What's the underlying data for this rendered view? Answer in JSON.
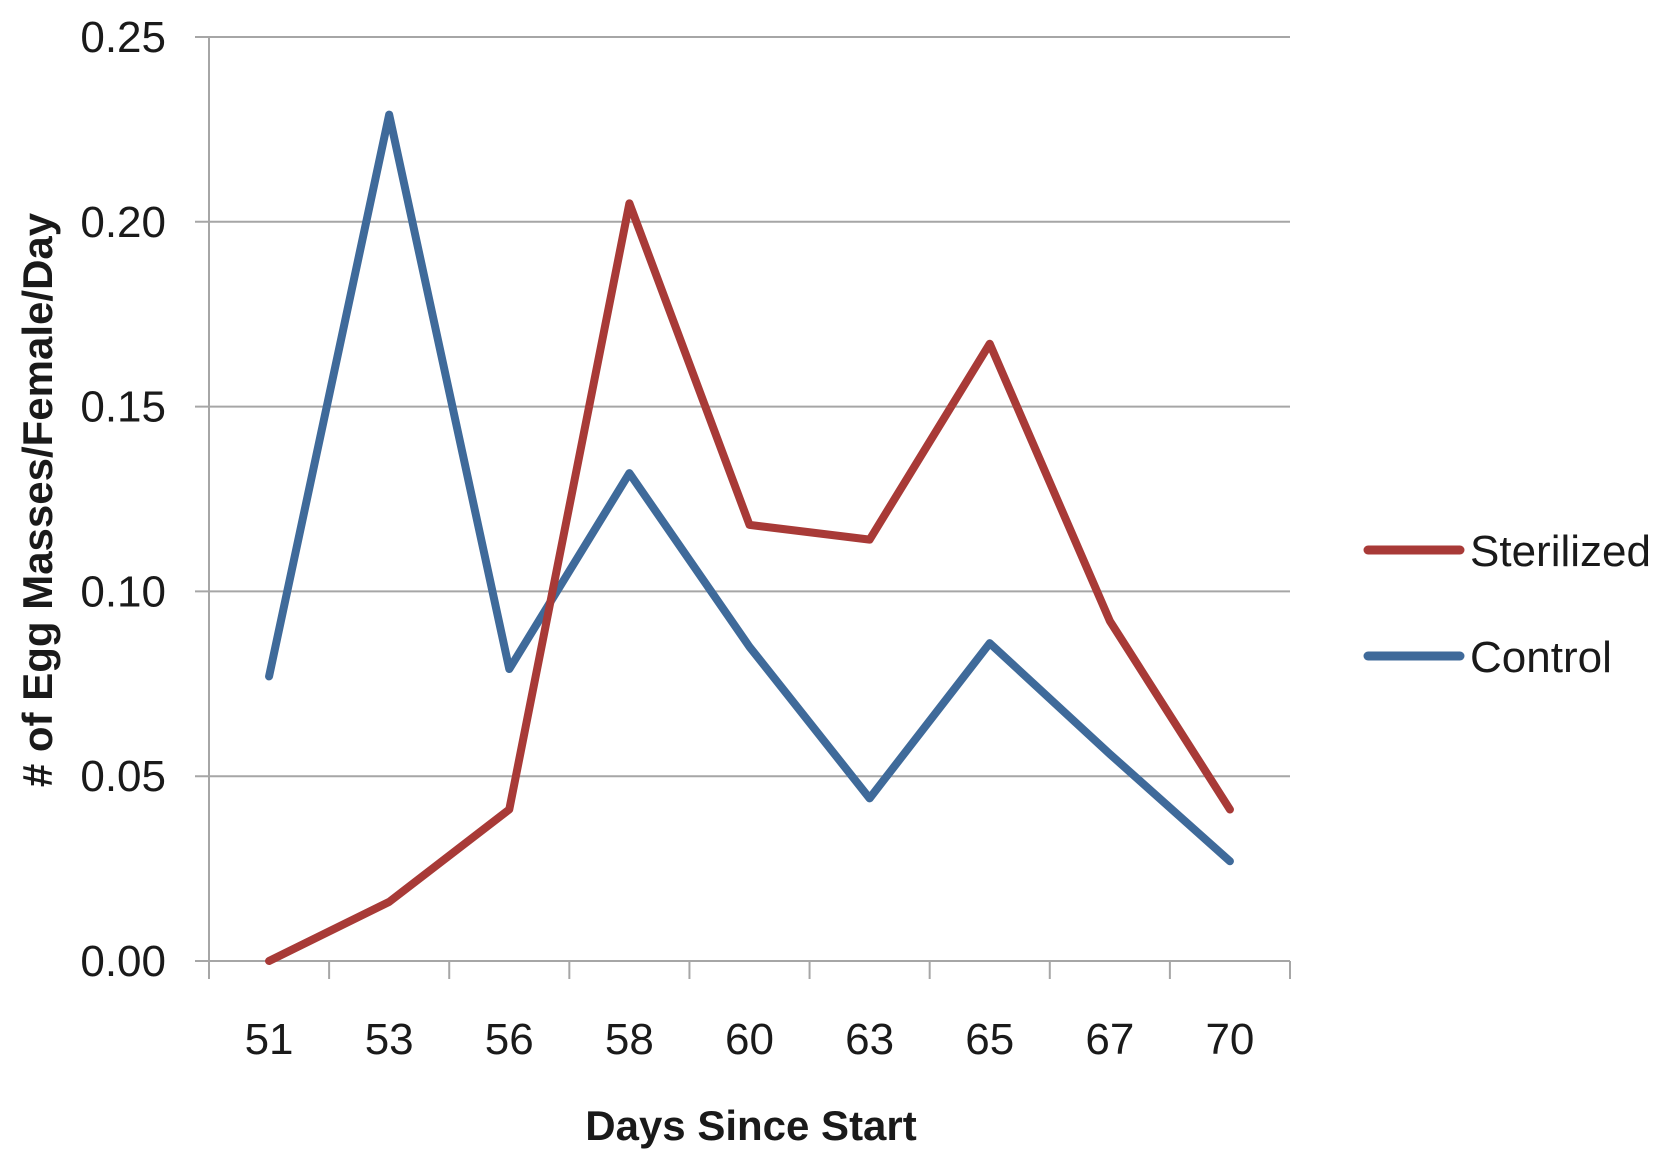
{
  "chart_data": {
    "type": "line",
    "title": "",
    "xlabel": "Days Since Start",
    "ylabel": "# of Egg Masses/Female/Day",
    "categories": [
      "51",
      "53",
      "56",
      "58",
      "60",
      "63",
      "65",
      "67",
      "70"
    ],
    "ylim": [
      0,
      0.25
    ],
    "yticks": [
      "0.00",
      "0.05",
      "0.10",
      "0.15",
      "0.20",
      "0.25"
    ],
    "grid": true,
    "legend_position": "right",
    "series": [
      {
        "name": "Sterilized",
        "color": "#a83a37",
        "values": [
          0.0,
          0.016,
          0.041,
          0.205,
          0.118,
          0.114,
          0.167,
          0.092,
          0.041
        ]
      },
      {
        "name": "Control",
        "color": "#3f6a9a",
        "values": [
          0.077,
          0.229,
          0.079,
          0.132,
          0.085,
          0.044,
          0.086,
          0.056,
          0.027
        ]
      }
    ]
  }
}
